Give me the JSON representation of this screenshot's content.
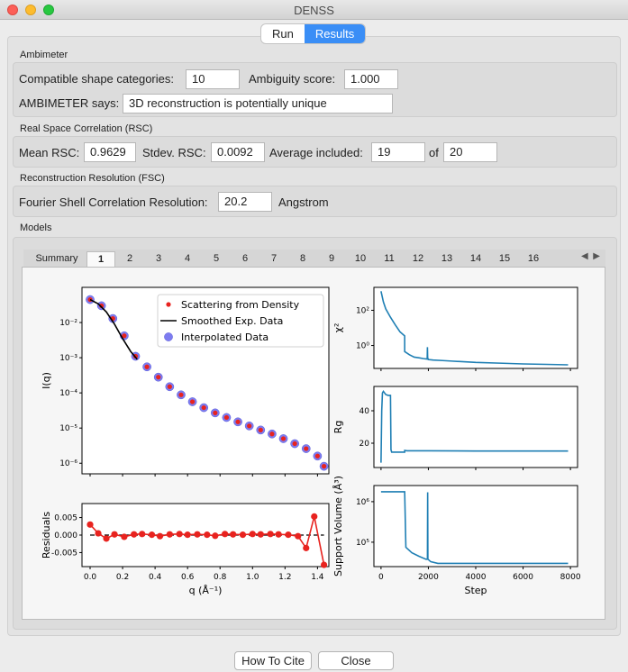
{
  "window": {
    "title": "DENSS"
  },
  "segment": {
    "run": "Run",
    "results": "Results"
  },
  "ambimeter": {
    "section": "Ambimeter",
    "compat_label": "Compatible shape categories:",
    "compat_value": "10",
    "ambiguity_label": "Ambiguity score:",
    "ambiguity_value": "1.000",
    "says_label": "AMBIMETER says:",
    "says_value": "3D reconstruction is potentially unique"
  },
  "rsc": {
    "section": "Real Space Correlation (RSC)",
    "mean_label": "Mean RSC:",
    "mean_value": "0.9629",
    "stdev_label": "Stdev. RSC:",
    "stdev_value": "0.0092",
    "avg_label": "Average included:",
    "avg_value": "19",
    "of_label": "of",
    "of_value": "20"
  },
  "fsc": {
    "section": "Reconstruction Resolution (FSC)",
    "label": "Fourier Shell Correlation Resolution:",
    "value": "20.2",
    "unit": "Angstrom"
  },
  "models": {
    "section": "Models",
    "tabs": [
      "Summary",
      "1",
      "2",
      "3",
      "4",
      "5",
      "6",
      "7",
      "8",
      "9",
      "10",
      "11",
      "12",
      "13",
      "14",
      "15",
      "16"
    ],
    "selected_tab": "1"
  },
  "buttons": {
    "cite": "How To Cite",
    "close": "Close"
  },
  "chart_data": [
    {
      "type": "scatter",
      "yscale": "log",
      "ylabel": "I(q)",
      "xlim": [
        -0.05,
        1.47
      ],
      "ylim": [
        5e-07,
        0.1
      ],
      "y_ticks": [
        "10⁻⁶",
        "10⁻⁵",
        "10⁻⁴",
        "10⁻³",
        "10⁻²"
      ],
      "legend": "top-right",
      "legend_entries": [
        "Scattering from Density",
        "Smoothed Exp. Data",
        "Interpolated Data"
      ],
      "series": [
        {
          "name": "Interpolated Data",
          "x": [
            0.0,
            0.07,
            0.14,
            0.21,
            0.28,
            0.35,
            0.42,
            0.49,
            0.56,
            0.63,
            0.7,
            0.77,
            0.84,
            0.91,
            0.98,
            1.05,
            1.12,
            1.19,
            1.26,
            1.33,
            1.4,
            1.44
          ],
          "y": [
            0.045,
            0.03,
            0.013,
            0.0042,
            0.0011,
            0.00055,
            0.00028,
            0.00015,
            8.8e-05,
            5.6e-05,
            3.8e-05,
            2.7e-05,
            2e-05,
            1.5e-05,
            1.15e-05,
            8.8e-06,
            6.8e-06,
            5e-06,
            3.6e-06,
            2.6e-06,
            1.6e-06,
            8.2e-07
          ]
        },
        {
          "name": "Scattering from Density",
          "x": [
            0.0,
            0.07,
            0.14,
            0.21,
            0.28,
            0.35,
            0.42,
            0.49,
            0.56,
            0.63,
            0.7,
            0.77,
            0.84,
            0.91,
            0.98,
            1.05,
            1.12,
            1.19,
            1.26,
            1.33,
            1.4,
            1.44
          ],
          "y": [
            0.045,
            0.03,
            0.013,
            0.0042,
            0.0011,
            0.00055,
            0.00028,
            0.00015,
            8.8e-05,
            5.6e-05,
            3.8e-05,
            2.7e-05,
            2e-05,
            1.5e-05,
            1.15e-05,
            8.8e-06,
            6.8e-06,
            5e-06,
            3.6e-06,
            2.6e-06,
            1.6e-06,
            8.2e-07
          ]
        },
        {
          "name": "Smoothed Exp. Data",
          "x": [
            0.0,
            0.05,
            0.1,
            0.15,
            0.2,
            0.25,
            0.29
          ],
          "y": [
            0.045,
            0.034,
            0.02,
            0.009,
            0.0035,
            0.0015,
            0.0009
          ]
        }
      ],
      "x_ticks": []
    },
    {
      "type": "line",
      "ylabel": "Residuals",
      "xlabel": "q (Å⁻¹)",
      "xlim": [
        -0.05,
        1.47
      ],
      "ylim": [
        -0.009,
        0.009
      ],
      "x_ticks": [
        "0.0",
        "0.2",
        "0.4",
        "0.6",
        "0.8",
        "1.0",
        "1.2",
        "1.4"
      ],
      "y_ticks": [
        "0.005",
        "0.000",
        "-0.005"
      ],
      "x": [
        0.0,
        0.05,
        0.1,
        0.15,
        0.21,
        0.27,
        0.32,
        0.38,
        0.43,
        0.49,
        0.55,
        0.6,
        0.66,
        0.72,
        0.77,
        0.83,
        0.88,
        0.94,
        1.0,
        1.05,
        1.11,
        1.16,
        1.22,
        1.28,
        1.33,
        1.38,
        1.44
      ],
      "y": [
        0.003,
        0.0005,
        -0.001,
        0.0002,
        -0.0005,
        0.0002,
        0.0003,
        0.0001,
        -0.0003,
        0.0002,
        0.0003,
        0.0001,
        0.0002,
        0.0001,
        -0.0002,
        0.0003,
        0.0002,
        0.0001,
        0.0003,
        0.0002,
        0.0003,
        0.0002,
        0.0001,
        -0.0003,
        -0.0037,
        0.0053,
        -0.0085
      ]
    },
    {
      "type": "line",
      "ylabel": "χ²",
      "yscale": "log",
      "xlim": [
        -300,
        8300
      ],
      "ylim": [
        0.05,
        2000
      ],
      "y_ticks": [
        "10⁰",
        "10²"
      ],
      "x": [
        0,
        100,
        200,
        400,
        600,
        800,
        999,
        1000,
        1200,
        1400,
        1600,
        1800,
        1950,
        1960,
        1970,
        2000,
        2200,
        2600,
        3000,
        4000,
        5000,
        6000,
        7000,
        7900
      ],
      "y": [
        1200,
        300,
        120,
        40,
        15,
        6,
        3.5,
        0.45,
        0.3,
        0.22,
        0.2,
        0.18,
        0.17,
        0.8,
        0.2,
        0.16,
        0.15,
        0.14,
        0.13,
        0.11,
        0.1,
        0.09,
        0.085,
        0.08
      ]
    },
    {
      "type": "line",
      "ylabel": "Rg",
      "xlim": [
        -300,
        8300
      ],
      "ylim": [
        5,
        55
      ],
      "y_ticks": [
        "20",
        "40"
      ],
      "x": [
        0,
        30,
        60,
        100,
        200,
        300,
        400,
        420,
        450,
        999,
        1000,
        1100,
        2000,
        4000,
        6000,
        7900
      ],
      "y": [
        8,
        40,
        51,
        52,
        50,
        49.5,
        49.5,
        16,
        14.5,
        14.5,
        15.5,
        15.3,
        15.3,
        15.2,
        15.2,
        15.2
      ]
    },
    {
      "type": "line",
      "ylabel": "Support Volume (Å³)",
      "yscale": "log",
      "xlabel": "Step",
      "xlim": [
        -300,
        8300
      ],
      "ylim": [
        25000,
        2500000
      ],
      "x_ticks": [
        "0",
        "2000",
        "4000",
        "6000",
        "8000"
      ],
      "y_ticks": [
        "10⁵",
        "10⁶"
      ],
      "x": [
        0,
        950,
        999,
        1050,
        1300,
        1600,
        1900,
        1960,
        1970,
        1980,
        2100,
        2400,
        3000,
        5000,
        7900
      ],
      "y": [
        1750000,
        1750000,
        1750000,
        75000,
        55000,
        45000,
        38000,
        38000,
        1700000,
        38000,
        33000,
        30000,
        30000,
        30000,
        30000
      ]
    }
  ]
}
